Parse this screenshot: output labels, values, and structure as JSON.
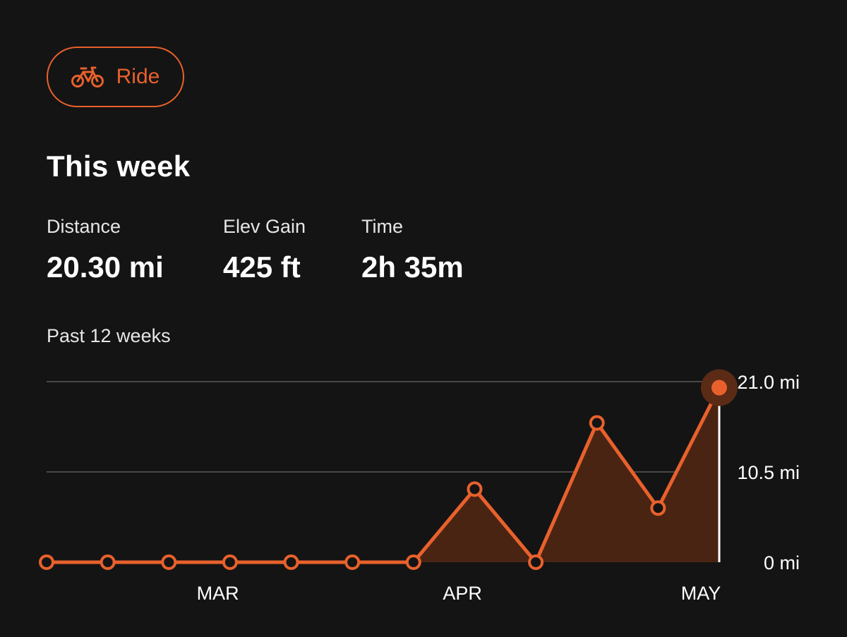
{
  "sport": {
    "label": "Ride",
    "icon": "bike-icon",
    "accent": "#e8612c"
  },
  "summary": {
    "title": "This week",
    "stats": [
      {
        "label": "Distance",
        "value": "20.30 mi"
      },
      {
        "label": "Elev Gain",
        "value": "425 ft"
      },
      {
        "label": "Time",
        "value": "2h 35m"
      }
    ]
  },
  "period_label": "Past 12 weeks",
  "chart_data": {
    "type": "area",
    "unit": "mi",
    "ylim": [
      0,
      21.0
    ],
    "y_ticks": [
      {
        "value": 0,
        "label": "0 mi"
      },
      {
        "value": 10.5,
        "label": "10.5 mi"
      },
      {
        "value": 21.0,
        "label": "21.0 mi"
      }
    ],
    "x_month_labels": [
      {
        "label": "MAR",
        "week_index": 2.8
      },
      {
        "label": "APR",
        "week_index": 6.8
      },
      {
        "label": "MAY",
        "week_index": 10.7
      }
    ],
    "values": [
      0,
      0,
      0,
      0,
      0,
      0,
      0,
      8.5,
      0,
      16.2,
      6.3,
      20.3
    ],
    "highlight_index": 11,
    "grid": true,
    "colors": {
      "line": "#e8612c",
      "fill": "#4a2413",
      "grid": "#4a4746",
      "marker_bg": "#141414",
      "halo": "#5b2b15",
      "cursor": "#ffffff"
    }
  }
}
